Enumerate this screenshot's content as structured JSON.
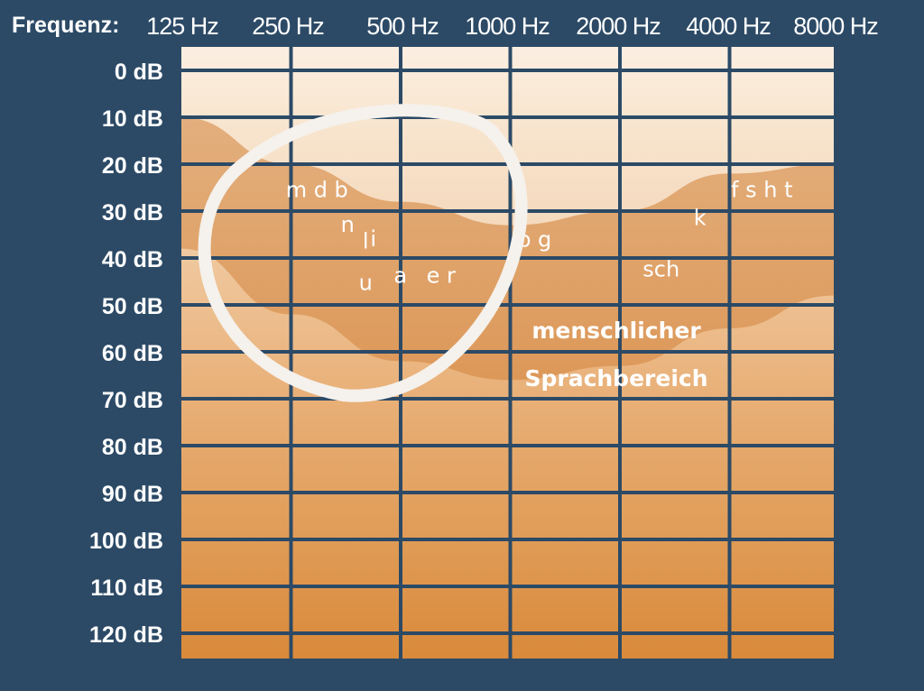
{
  "chart_data": {
    "type": "audiogram",
    "frequency_axis_title": "Frequenz:",
    "frequency_labels": [
      "125 Hz",
      "250 Hz",
      "500 Hz",
      "1000 Hz",
      "2000 Hz",
      "4000 Hz",
      "8000 Hz"
    ],
    "level_labels": [
      "0 dB",
      "10 dB",
      "20 dB",
      "30 dB",
      "40 dB",
      "50 dB",
      "60 dB",
      "70 dB",
      "80 dB",
      "90 dB",
      "100 dB",
      "110 dB",
      "120 dB"
    ],
    "level_range_db": [
      0,
      120
    ],
    "speech_region": {
      "label_line_1": "menschlicher",
      "label_line_2": "Sprachbereich",
      "upper_boundary_db": [
        [
          125,
          10
        ],
        [
          250,
          20
        ],
        [
          500,
          28
        ],
        [
          1000,
          33
        ],
        [
          2000,
          30
        ],
        [
          4000,
          22
        ],
        [
          8000,
          20
        ]
      ],
      "lower_boundary_db": [
        [
          125,
          38
        ],
        [
          250,
          52
        ],
        [
          500,
          62
        ],
        [
          1000,
          66
        ],
        [
          2000,
          63
        ],
        [
          4000,
          55
        ],
        [
          8000,
          48
        ]
      ]
    },
    "phonemes": [
      {
        "text": "m d b",
        "hz": 250,
        "db": 27
      },
      {
        "text": "n",
        "hz": 250,
        "db": 34
      },
      {
        "text": "l",
        "hz": 250,
        "db": 37
      },
      {
        "text": "u",
        "hz": 250,
        "db": 43
      },
      {
        "text": "a",
        "hz": 500,
        "db": 42
      },
      {
        "text": "i",
        "hz": 500,
        "db": 36
      },
      {
        "text": "e r",
        "hz": 500,
        "db": 42
      },
      {
        "text": "p g",
        "hz": 1000,
        "db": 37
      },
      {
        "text": "k",
        "hz": 2000,
        "db": 33
      },
      {
        "text": "sch",
        "hz": 2000,
        "db": 43
      },
      {
        "text": "f s h t",
        "hz": 4000,
        "db": 27
      }
    ],
    "highlight": "circle around the low-frequency phonemes"
  }
}
